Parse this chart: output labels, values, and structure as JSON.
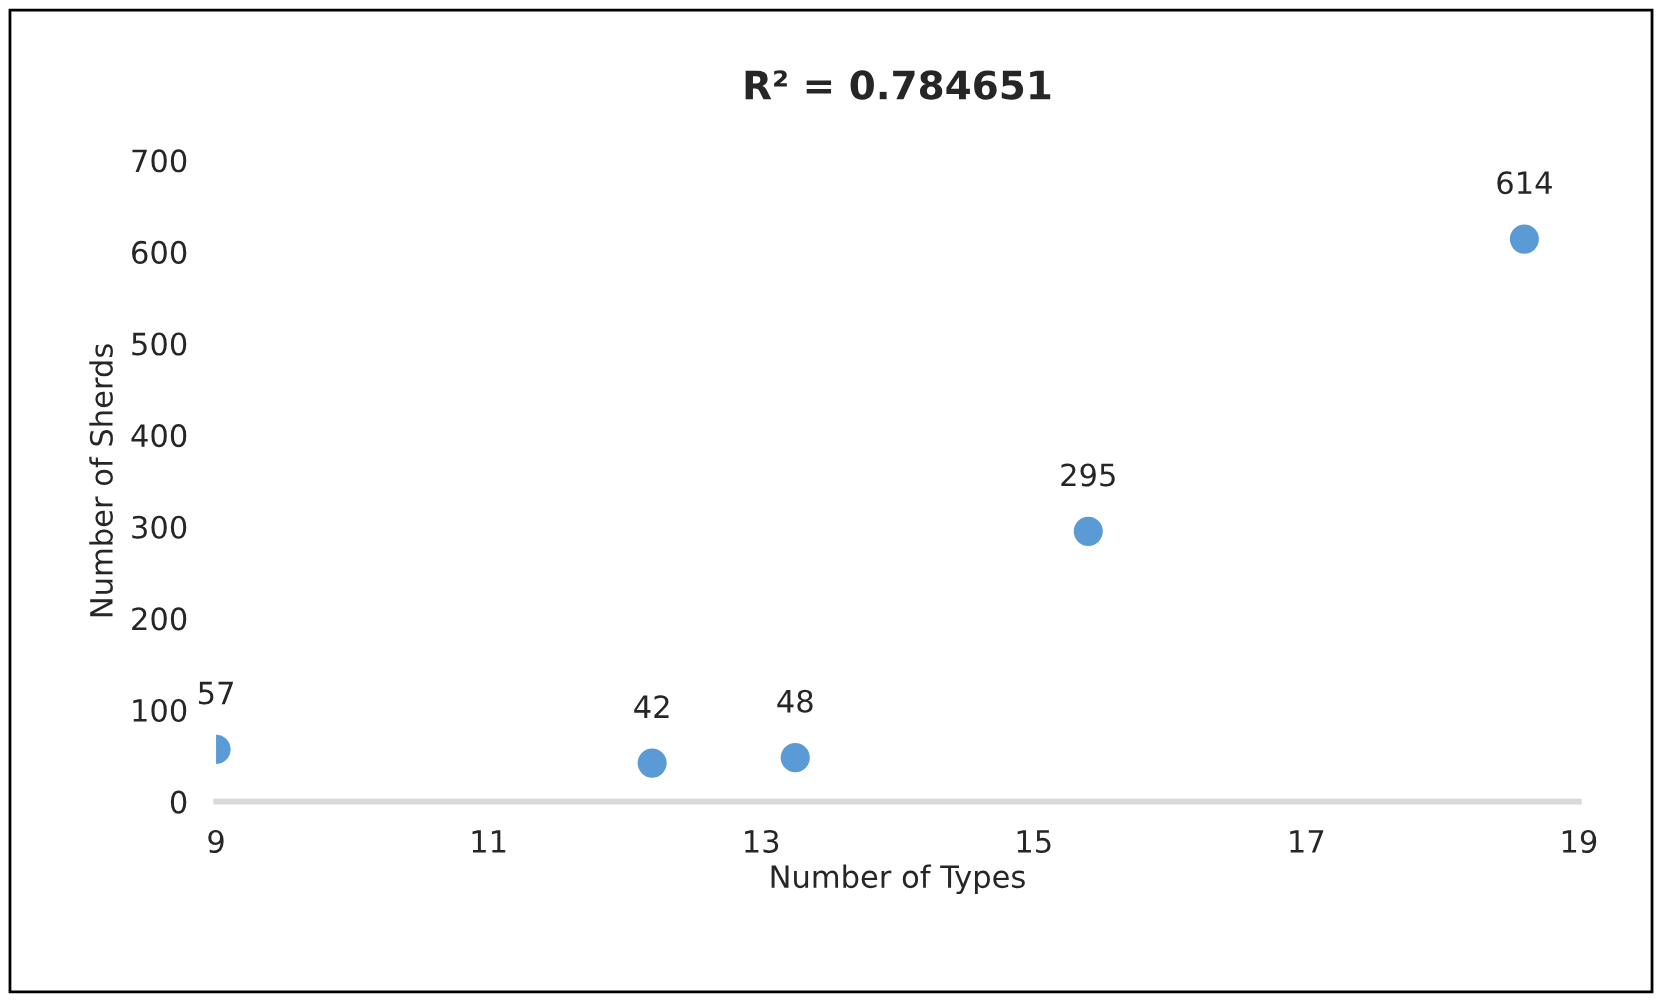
{
  "chart_data": {
    "type": "scatter",
    "title": "R² = 0.784651",
    "xlabel": "Number of Types",
    "ylabel": "Number of Sherds",
    "x": [
      9,
      12.2,
      13.25,
      15.4,
      18.6
    ],
    "series": [
      {
        "color": "#5b9bd5",
        "values": [
          57,
          42,
          48,
          295,
          614
        ]
      }
    ],
    "xlim": [
      9,
      19
    ],
    "xticks": [
      9,
      11,
      13,
      15,
      17,
      19
    ],
    "ylim": [
      0,
      700
    ],
    "yticks": [
      0,
      100,
      200,
      300,
      400,
      500,
      600,
      700
    ],
    "data_labels": true,
    "marker": "circle",
    "grid": false,
    "legend": false
  }
}
